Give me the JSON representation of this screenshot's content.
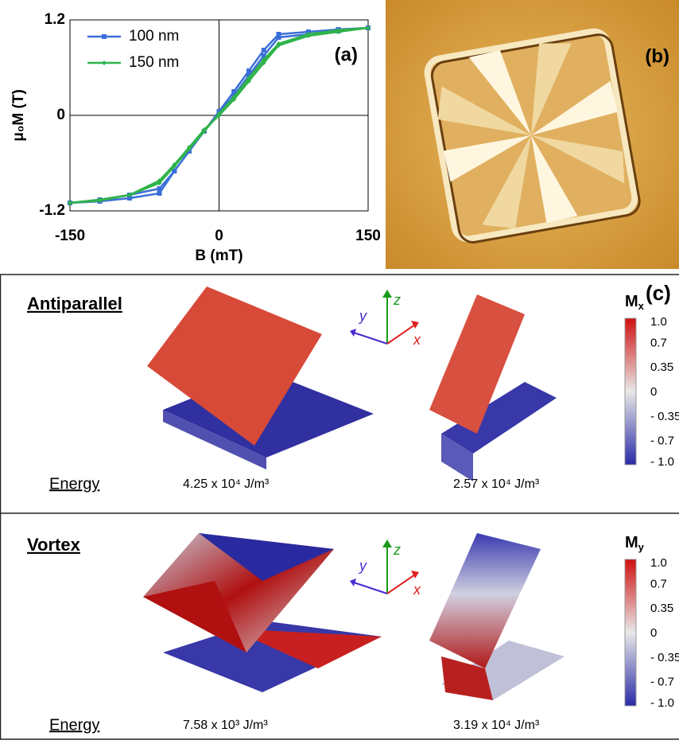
{
  "chart_data": {
    "type": "line",
    "ylabel": "μ₀M (T)",
    "xlabel": "B (mT)",
    "annotation": "(a)",
    "x": [
      -150,
      -120,
      -90,
      -60,
      -45,
      -30,
      -15,
      0,
      15,
      30,
      45,
      60,
      90,
      120,
      150,
      120,
      90,
      60,
      45,
      30,
      15,
      0,
      -15,
      -30,
      -45,
      -60,
      -90,
      -120,
      -150
    ],
    "series": [
      {
        "name": "100 nm",
        "color": "#3a6fd8",
        "marker": "square",
        "values": [
          -1.1,
          -1.08,
          -1.04,
          -0.98,
          -0.7,
          -0.45,
          -0.2,
          0.02,
          0.25,
          0.5,
          0.75,
          0.98,
          1.02,
          1.06,
          1.1,
          1.08,
          1.05,
          1.02,
          0.82,
          0.56,
          0.3,
          0.05,
          -0.2,
          -0.45,
          -0.7,
          -0.92,
          -1.0,
          -1.06,
          -1.1
        ]
      },
      {
        "name": "150 nm",
        "color": "#2fb34a",
        "marker": "diamond",
        "values": [
          -1.1,
          -1.07,
          -1.0,
          -0.82,
          -0.62,
          -0.4,
          -0.18,
          0.0,
          0.2,
          0.43,
          0.66,
          0.88,
          1.0,
          1.05,
          1.1,
          1.07,
          1.02,
          0.9,
          0.7,
          0.47,
          0.23,
          0.02,
          -0.2,
          -0.42,
          -0.64,
          -0.85,
          -1.0,
          -1.06,
          -1.1
        ]
      }
    ],
    "xlim": [
      -150,
      150
    ],
    "ylim": [
      -1.2,
      1.2
    ],
    "xticks": [
      -150,
      0,
      150
    ],
    "yticks": [
      -1.2,
      0,
      1.2
    ],
    "legend": "upper left"
  },
  "panel_b": {
    "label": "(b)"
  },
  "panel_c": {
    "label": "(c)",
    "triad": {
      "x": "x",
      "y": "y",
      "z": "z"
    },
    "rows": [
      {
        "title": "Antiparallel",
        "energy_label": "Energy",
        "energies": [
          "4.25 x 10⁴ J/m³",
          "2.57 x 10⁴ J/m³"
        ],
        "colorbar_title": "M",
        "colorbar_subscript": "x",
        "colorbar_ticks": [
          "1.0",
          "0.7",
          "0.35",
          "0",
          "- 0.35",
          "- 0.7",
          "- 1.0"
        ]
      },
      {
        "title": "Vortex",
        "energy_label": "Energy",
        "energies": [
          "7.58 x 10³ J/m³",
          "3.19 x 10⁴ J/m³"
        ],
        "colorbar_title": "M",
        "colorbar_subscript": "y",
        "colorbar_ticks": [
          "1.0",
          "0.7",
          "0.35",
          "0",
          "- 0.35",
          "- 0.7",
          "- 1.0"
        ]
      }
    ]
  }
}
